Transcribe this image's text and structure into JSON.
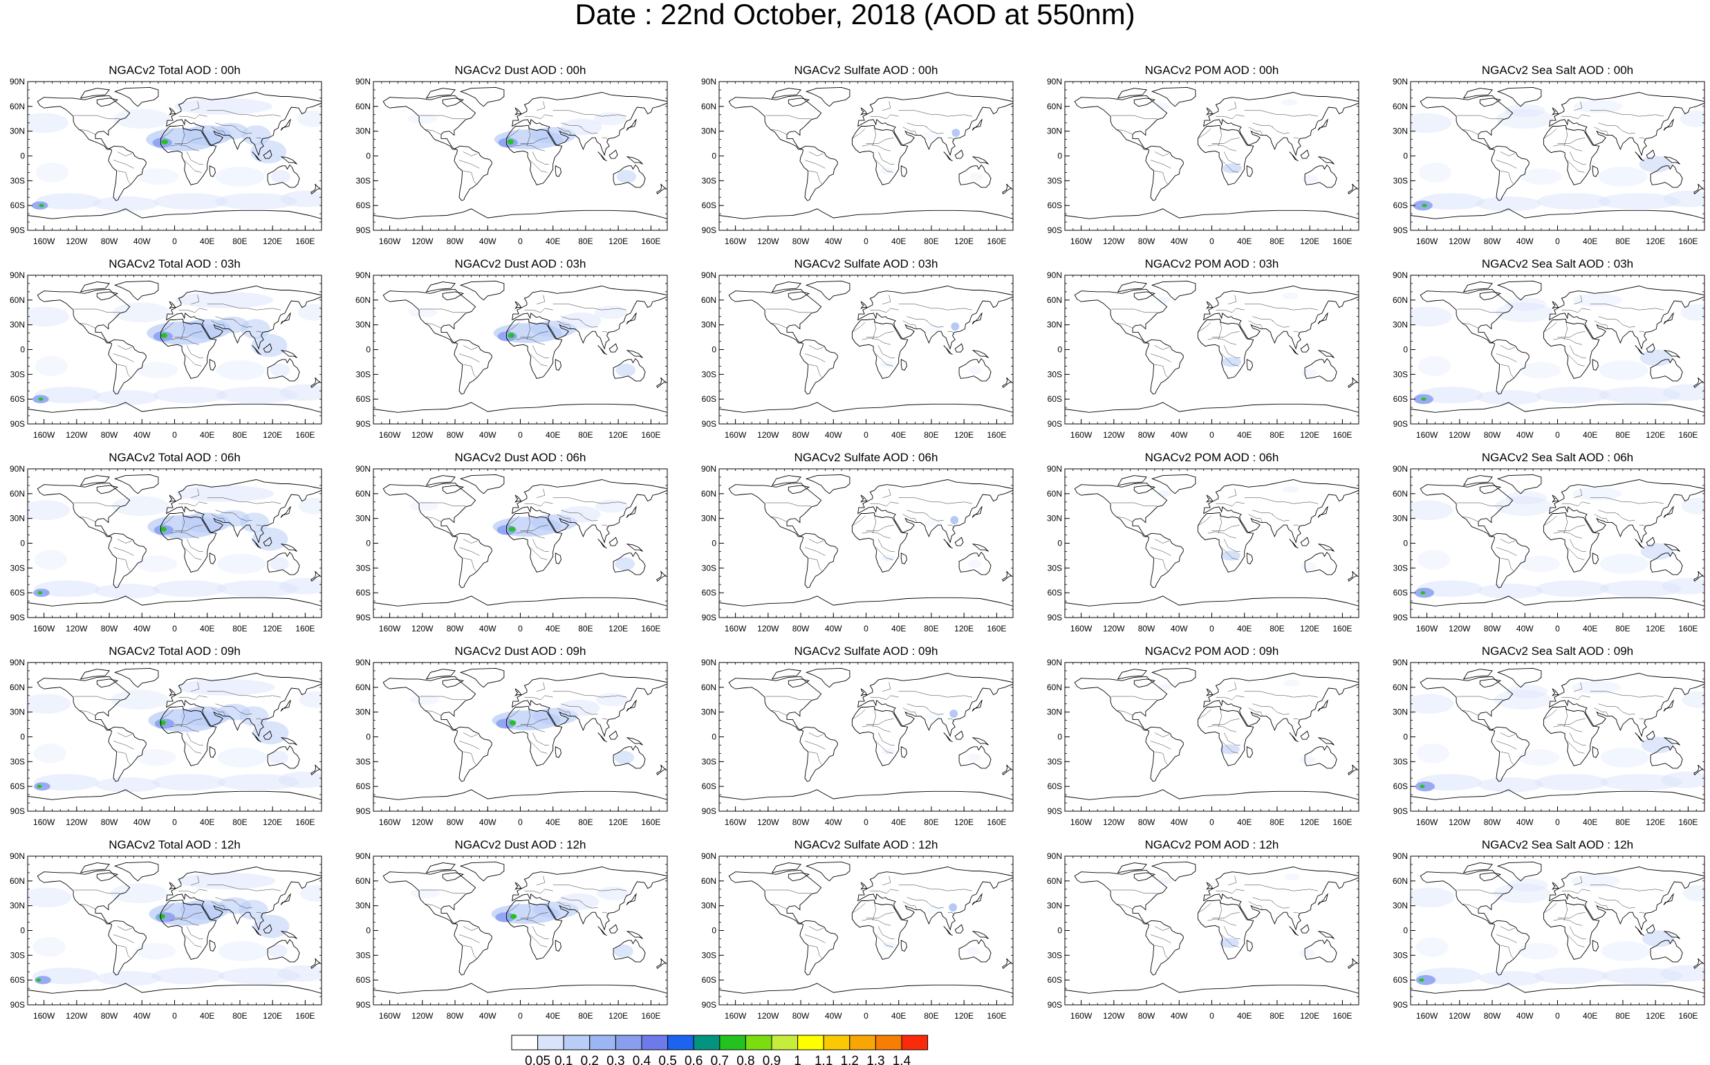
{
  "title": "Date : 22nd October, 2018 (AOD at 550nm)",
  "axes": {
    "lat_labels": [
      "90N",
      "60N",
      "30N",
      "0",
      "30S",
      "60S",
      "90S"
    ],
    "lat_values": [
      90,
      60,
      30,
      0,
      -30,
      -60,
      -90
    ],
    "lon_labels": [
      "160W",
      "120W",
      "80W",
      "40W",
      "0",
      "40E",
      "80E",
      "120E",
      "160E"
    ],
    "lon_values": [
      -160,
      -120,
      -80,
      -40,
      0,
      40,
      80,
      120,
      160
    ]
  },
  "species": [
    "Total",
    "Dust",
    "Sulfate",
    "POM",
    "Sea Salt"
  ],
  "times": [
    "00h",
    "03h",
    "06h",
    "09h",
    "12h"
  ],
  "panels": [
    [
      {
        "title": "NGACv2 Total AOD : 00h",
        "species": "Total",
        "time": "00h"
      },
      {
        "title": "NGACv2 Dust AOD : 00h",
        "species": "Dust",
        "time": "00h"
      },
      {
        "title": "NGACv2 Sulfate AOD : 00h",
        "species": "Sulfate",
        "time": "00h"
      },
      {
        "title": "NGACv2 POM AOD : 00h",
        "species": "POM",
        "time": "00h"
      },
      {
        "title": "NGACv2 Sea Salt AOD : 00h",
        "species": "Sea Salt",
        "time": "00h"
      }
    ],
    [
      {
        "title": "NGACv2 Total AOD : 03h",
        "species": "Total",
        "time": "03h"
      },
      {
        "title": "NGACv2 Dust AOD : 03h",
        "species": "Dust",
        "time": "03h"
      },
      {
        "title": "NGACv2 Sulfate AOD : 03h",
        "species": "Sulfate",
        "time": "03h"
      },
      {
        "title": "NGACv2 POM AOD : 03h",
        "species": "POM",
        "time": "03h"
      },
      {
        "title": "NGACv2 Sea Salt AOD : 03h",
        "species": "Sea Salt",
        "time": "03h"
      }
    ],
    [
      {
        "title": "NGACv2 Total AOD : 06h",
        "species": "Total",
        "time": "06h"
      },
      {
        "title": "NGACv2 Dust AOD : 06h",
        "species": "Dust",
        "time": "06h"
      },
      {
        "title": "NGACv2 Sulfate AOD : 06h",
        "species": "Sulfate",
        "time": "06h"
      },
      {
        "title": "NGACv2 POM AOD : 06h",
        "species": "POM",
        "time": "06h"
      },
      {
        "title": "NGACv2 Sea Salt AOD : 06h",
        "species": "Sea Salt",
        "time": "06h"
      }
    ],
    [
      {
        "title": "NGACv2 Total AOD : 09h",
        "species": "Total",
        "time": "09h"
      },
      {
        "title": "NGACv2 Dust AOD : 09h",
        "species": "Dust",
        "time": "09h"
      },
      {
        "title": "NGACv2 Sulfate AOD : 09h",
        "species": "Sulfate",
        "time": "09h"
      },
      {
        "title": "NGACv2 POM AOD : 09h",
        "species": "POM",
        "time": "09h"
      },
      {
        "title": "NGACv2 Sea Salt  AOD : 09h",
        "species": "Sea Salt",
        "time": "09h"
      }
    ],
    [
      {
        "title": "NGACv2 Total AOD : 12h",
        "species": "Total",
        "time": "12h"
      },
      {
        "title": "NGACv2 Dust AOD : 12h",
        "species": "Dust",
        "time": "12h"
      },
      {
        "title": "NGACv2 Sulfate AOD : 12h",
        "species": "Sulfate",
        "time": "12h"
      },
      {
        "title": "NGACv2 POM  AOD : 12h",
        "species": "POM",
        "time": "12h"
      },
      {
        "title": "NGACv2 Sea Salt  AOD : 12h",
        "species": "Sea Salt",
        "time": "12h"
      }
    ]
  ],
  "colorbar": {
    "labels": [
      "0.05",
      "0.1",
      "0.2",
      "0.3",
      "0.4",
      "0.5",
      "0.6",
      "0.7",
      "0.8",
      "0.9",
      "1",
      "1.1",
      "1.2",
      "1.3",
      "1.4"
    ],
    "colors": [
      "#ffffff",
      "#d9e4fb",
      "#b9cdf7",
      "#9cb6f3",
      "#8a9ef0",
      "#6f7aea",
      "#1a64f0",
      "#039480",
      "#22c31e",
      "#7bdc0e",
      "#c6ec3c",
      "#ffff00",
      "#fbc904",
      "#f8a604",
      "#f77e03",
      "#fb2a0a"
    ]
  },
  "land_color": "#ffffff",
  "coast_color": "#000000"
}
